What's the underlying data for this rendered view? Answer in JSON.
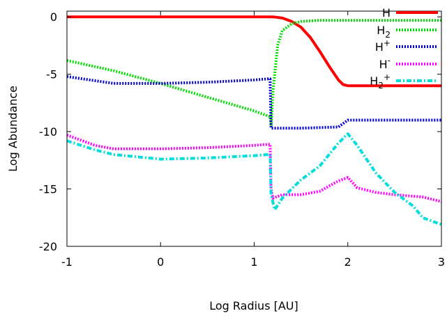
{
  "chart_data": {
    "type": "line",
    "xlabel": "Log Radius [AU]",
    "ylabel": "Log Abundance",
    "xlim": [
      -1,
      3
    ],
    "ylim": [
      -20,
      0.5
    ],
    "xticks": [
      -1,
      0,
      1,
      2,
      3
    ],
    "yticks": [
      -20,
      -15,
      -10,
      -5,
      0
    ],
    "grid": false,
    "legend_position": "top-right",
    "series": [
      {
        "name": "H",
        "color": "#ff0000",
        "dash": "solid",
        "x": [
          -1,
          0,
          1,
          1.2,
          1.3,
          1.4,
          1.5,
          1.6,
          1.7,
          1.8,
          1.9,
          1.95,
          2.0,
          2.5,
          3.0
        ],
        "y": [
          0,
          0,
          0,
          0,
          -0.1,
          -0.4,
          -0.9,
          -1.8,
          -3.0,
          -4.3,
          -5.5,
          -5.9,
          -6.0,
          -6.0,
          -6.0
        ]
      },
      {
        "name": "H2",
        "color": "#00dd00",
        "dash": "dotted",
        "x": [
          -1,
          -0.5,
          0,
          0.5,
          1.0,
          1.17,
          1.18,
          1.2,
          1.25,
          1.3,
          1.4,
          1.5,
          1.7,
          2.0,
          2.5,
          3.0
        ],
        "y": [
          -3.8,
          -4.7,
          -5.8,
          -7.0,
          -8.2,
          -8.7,
          -9.5,
          -6.5,
          -2.5,
          -1.2,
          -0.6,
          -0.4,
          -0.3,
          -0.3,
          -0.3,
          -0.3
        ]
      },
      {
        "name": "H+",
        "color": "#0000cc",
        "dash": "dotted",
        "x": [
          -1,
          -0.5,
          0,
          0.5,
          1.0,
          1.15,
          1.17,
          1.18,
          1.5,
          1.9,
          2.0,
          2.5,
          3.0
        ],
        "y": [
          -5.2,
          -5.8,
          -5.8,
          -5.7,
          -5.5,
          -5.4,
          -5.4,
          -9.7,
          -9.7,
          -9.6,
          -9.0,
          -9.0,
          -9.0
        ]
      },
      {
        "name": "H-",
        "color": "#ff00ff",
        "dash": "dotted",
        "x": [
          -1,
          -0.7,
          -0.5,
          0,
          0.5,
          1.0,
          1.15,
          1.17,
          1.18,
          1.2,
          1.3,
          1.5,
          1.7,
          1.9,
          2.0,
          2.1,
          2.3,
          2.5,
          2.8,
          3.0
        ],
        "y": [
          -10.3,
          -11.2,
          -11.5,
          -11.5,
          -11.4,
          -11.2,
          -11.1,
          -11.1,
          -15.0,
          -15.8,
          -15.5,
          -15.5,
          -15.2,
          -14.3,
          -14.0,
          -14.9,
          -15.3,
          -15.5,
          -15.7,
          -16.1
        ]
      },
      {
        "name": "H2+",
        "color": "#00dddd",
        "dash": "dashdot",
        "x": [
          -1,
          -0.7,
          -0.5,
          0,
          0.5,
          1.0,
          1.15,
          1.17,
          1.18,
          1.22,
          1.3,
          1.5,
          1.7,
          1.9,
          2.0,
          2.1,
          2.3,
          2.5,
          2.7,
          2.8,
          3.0
        ],
        "y": [
          -10.8,
          -11.6,
          -12.0,
          -12.4,
          -12.3,
          -12.1,
          -12.0,
          -12.0,
          -15.5,
          -16.8,
          -15.8,
          -14.2,
          -13.0,
          -11.0,
          -10.2,
          -11.2,
          -13.6,
          -15.3,
          -16.5,
          -17.5,
          -18.1
        ]
      }
    ]
  },
  "legend": [
    {
      "text": "H",
      "sub": "",
      "sup": ""
    },
    {
      "text": "H",
      "sub": "2",
      "sup": ""
    },
    {
      "text": "H",
      "sub": "",
      "sup": "+"
    },
    {
      "text": "H",
      "sub": "",
      "sup": "-"
    },
    {
      "text": "H",
      "sub": "2",
      "sup": "+"
    }
  ]
}
